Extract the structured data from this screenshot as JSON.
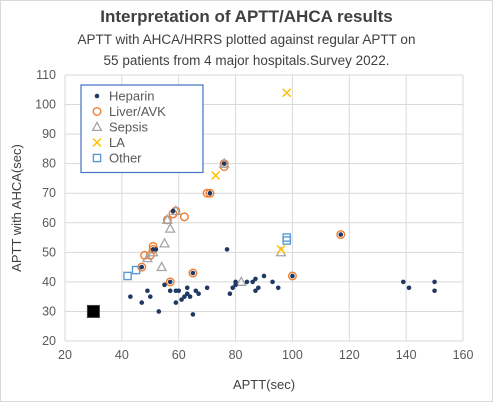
{
  "title": "Interpretation of APTT/AHCA results",
  "subtitle_line1": "APTT  with AHCA/HRRS  plotted against regular APTT on",
  "subtitle_line2": "55 patients from 4 major hospitals.Survey 2022.",
  "colors": {
    "heparin": "#1f3864",
    "liver": "#ed7d31",
    "sepsis": "#a5a5a5",
    "la": "#ffc000",
    "other": "#5b9bd5",
    "grid": "#d9d9d9",
    "legend_border": "#4472c4",
    "reference_marker": "#000000"
  },
  "chart_data": {
    "type": "scatter",
    "xlabel": "APTT(sec)",
    "ylabel": "APTT with AHCA(sec)",
    "xlim": [
      20,
      160
    ],
    "ylim": [
      20,
      110
    ],
    "xticks": [
      20,
      40,
      60,
      80,
      100,
      120,
      140,
      160
    ],
    "yticks": [
      20,
      30,
      40,
      50,
      60,
      70,
      80,
      90,
      100,
      110
    ],
    "grid": true,
    "legend_position": "top-left",
    "series": [
      {
        "name": "Heparin",
        "marker": "dot",
        "points": [
          [
            30,
            30
          ],
          [
            43,
            35
          ],
          [
            47,
            33
          ],
          [
            49,
            37
          ],
          [
            50,
            35
          ],
          [
            53,
            30
          ],
          [
            55,
            39
          ],
          [
            57,
            37
          ],
          [
            59,
            33
          ],
          [
            59,
            37
          ],
          [
            60,
            37
          ],
          [
            61,
            34
          ],
          [
            62,
            35
          ],
          [
            63,
            38
          ],
          [
            63,
            36
          ],
          [
            64,
            35
          ],
          [
            65,
            29
          ],
          [
            66,
            37
          ],
          [
            67,
            36
          ],
          [
            70,
            38
          ],
          [
            77,
            51
          ],
          [
            78,
            36
          ],
          [
            79,
            38
          ],
          [
            80,
            40
          ],
          [
            80,
            39
          ],
          [
            84,
            40
          ],
          [
            86,
            40
          ],
          [
            87,
            37
          ],
          [
            87,
            41
          ],
          [
            88,
            38
          ],
          [
            90,
            42
          ],
          [
            93,
            40
          ],
          [
            95,
            38
          ],
          [
            100,
            42
          ],
          [
            117,
            56
          ],
          [
            139,
            40
          ],
          [
            141,
            38
          ],
          [
            150,
            40
          ],
          [
            150,
            37
          ],
          [
            65,
            43
          ],
          [
            57,
            40
          ],
          [
            51,
            51
          ],
          [
            58,
            64
          ],
          [
            71,
            70
          ],
          [
            76,
            80
          ],
          [
            52,
            51
          ],
          [
            47,
            45
          ]
        ]
      },
      {
        "name": "Liver/AVK",
        "marker": "circle",
        "points": [
          [
            47,
            45
          ],
          [
            48,
            49
          ],
          [
            50,
            49
          ],
          [
            51,
            51
          ],
          [
            51,
            52
          ],
          [
            56,
            61
          ],
          [
            57,
            40
          ],
          [
            58,
            63
          ],
          [
            59,
            64
          ],
          [
            62,
            62
          ],
          [
            65,
            43
          ],
          [
            70,
            70
          ],
          [
            71,
            70
          ],
          [
            76,
            79
          ],
          [
            76,
            80
          ],
          [
            100,
            42
          ],
          [
            117,
            56
          ]
        ]
      },
      {
        "name": "Sepsis",
        "marker": "triangle",
        "points": [
          [
            49,
            48
          ],
          [
            51,
            50
          ],
          [
            54,
            45
          ],
          [
            55,
            53
          ],
          [
            56,
            61
          ],
          [
            57,
            58
          ],
          [
            59,
            64
          ],
          [
            76,
            80
          ],
          [
            82,
            40
          ],
          [
            96,
            50
          ]
        ]
      },
      {
        "name": "LA",
        "marker": "x",
        "points": [
          [
            73,
            76
          ],
          [
            96,
            51
          ],
          [
            98,
            104
          ]
        ]
      },
      {
        "name": "Other",
        "marker": "square",
        "points": [
          [
            42,
            42
          ],
          [
            45,
            44
          ],
          [
            98,
            54
          ],
          [
            98,
            55
          ]
        ]
      }
    ],
    "reference_marker": {
      "x": 30,
      "y": 30
    }
  }
}
